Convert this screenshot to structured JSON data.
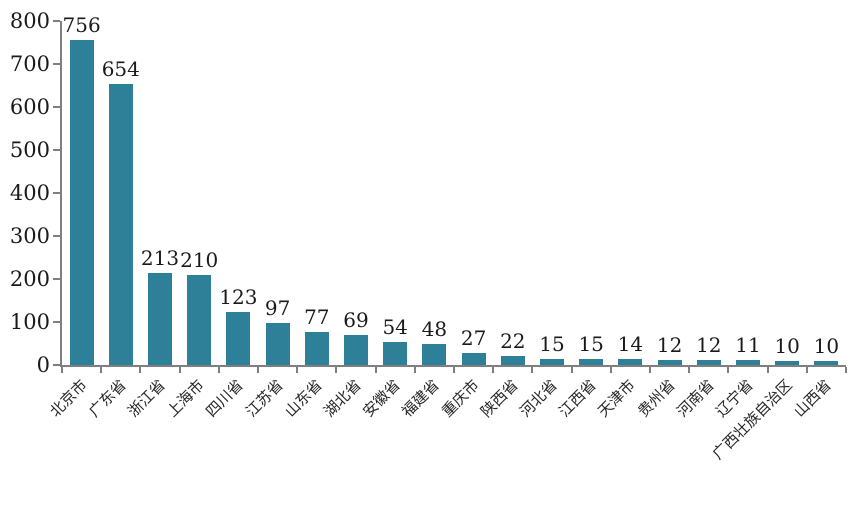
{
  "chart_data": {
    "type": "bar",
    "title": "",
    "xlabel": "",
    "ylabel": "",
    "categories": [
      "北京市",
      "广东省",
      "浙江省",
      "上海市",
      "四川省",
      "江苏省",
      "山东省",
      "湖北省",
      "安徽省",
      "福建省",
      "重庆市",
      "陕西省",
      "河北省",
      "江西省",
      "天津市",
      "贵州省",
      "河南省",
      "辽宁省",
      "广西壮族自治区",
      "山西省"
    ],
    "values": [
      756,
      654,
      213,
      210,
      123,
      97,
      77,
      69,
      54,
      48,
      27,
      22,
      15,
      15,
      14,
      12,
      12,
      11,
      10,
      10
    ],
    "ylim": [
      0,
      800
    ],
    "ytick_step": 100,
    "ytick_labels": [
      "0",
      "100",
      "200",
      "300",
      "400",
      "500",
      "600",
      "700",
      "800"
    ],
    "grid": false,
    "legend_position": "none",
    "value_labels_shown": true,
    "bar_color": "#2E7F98",
    "text_color": "#1a1a1a",
    "axis_color": "#7f7f7f",
    "background_color": "#ffffff"
  }
}
